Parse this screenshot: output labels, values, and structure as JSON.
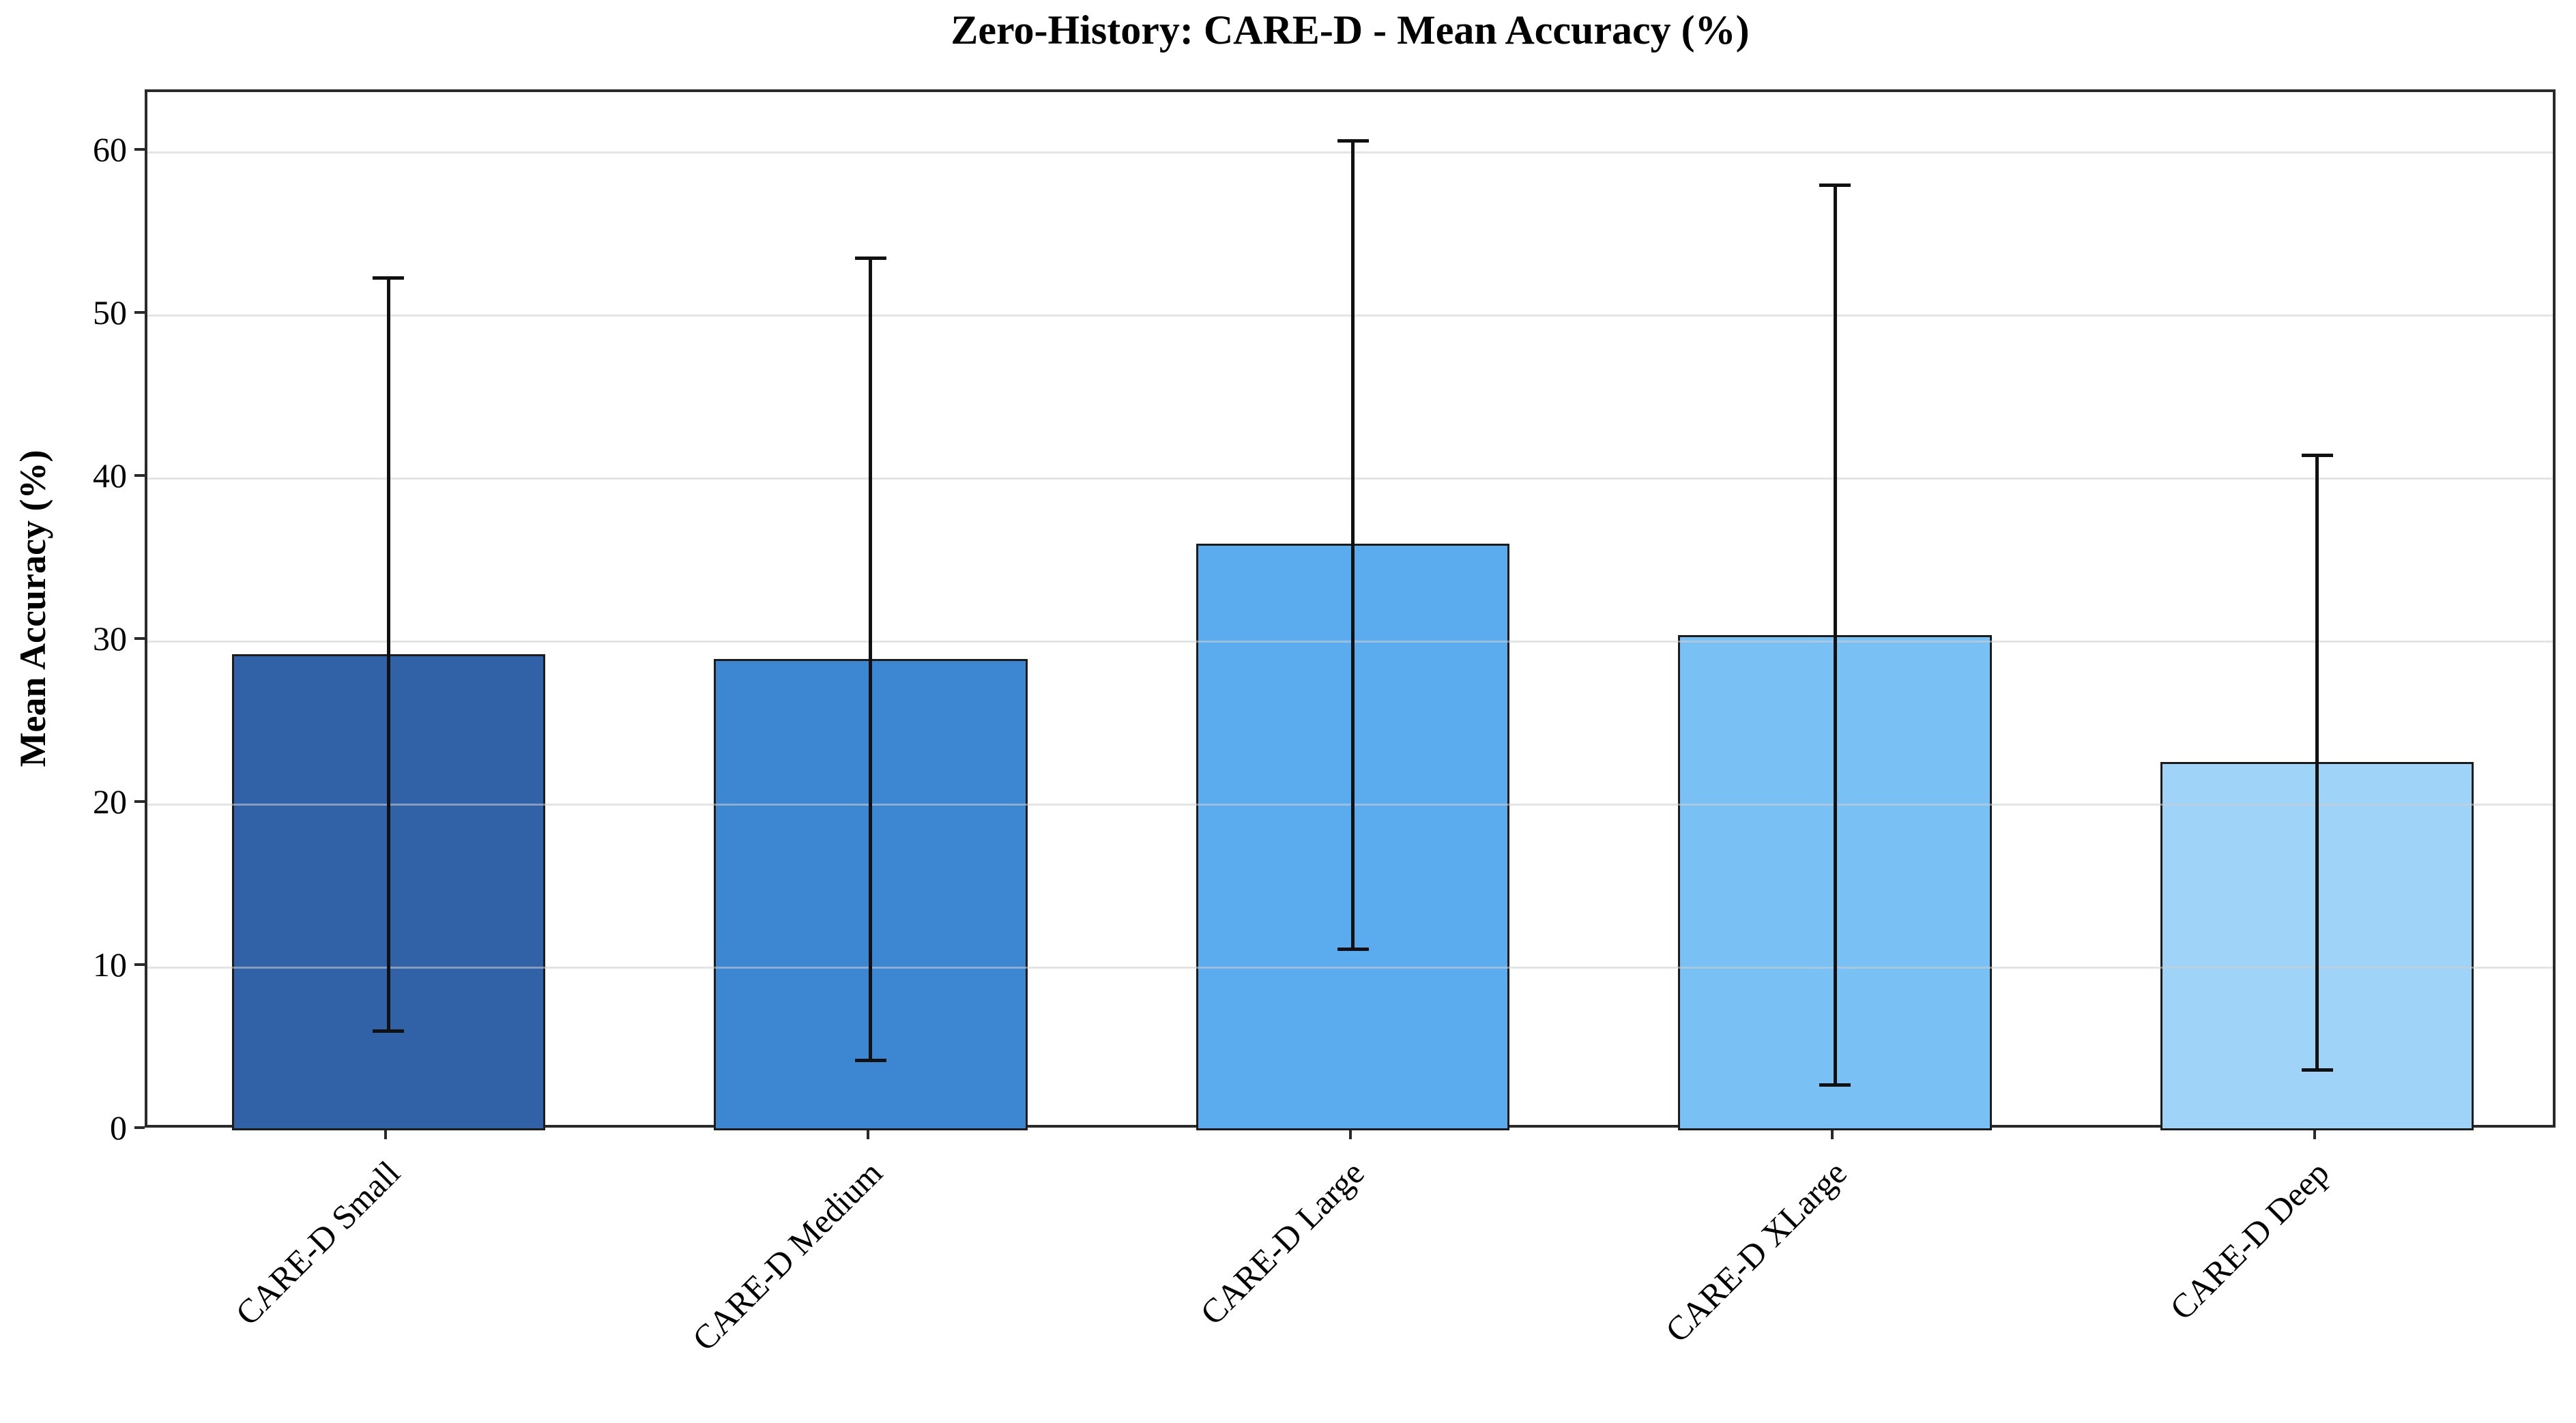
{
  "chart_data": {
    "type": "bar",
    "title": "Zero-History: CARE-D - Mean Accuracy (%)",
    "ylabel": "Mean Accuracy (%)",
    "xlabel": "",
    "categories": [
      "CARE-D Small",
      "CARE-D Medium",
      "CARE-D Large",
      "CARE-D XLarge",
      "CARE-D Deep"
    ],
    "values": [
      29.2,
      28.9,
      36.0,
      30.4,
      22.6
    ],
    "error_low": [
      6.1,
      4.3,
      11.1,
      2.8,
      3.7
    ],
    "error_high": [
      52.3,
      53.5,
      60.7,
      58.0,
      41.4
    ],
    "yticks": [
      0,
      10,
      20,
      30,
      40,
      50,
      60
    ],
    "ylim": [
      0,
      63.7
    ],
    "bar_colors": [
      "#3162a8",
      "#3c86d2",
      "#5bacef",
      "#79c0f5",
      "#a0d3f8"
    ],
    "bar_edge_color": "#1c1c1c",
    "error_color": "#111111",
    "grid": "horizontal-on-top",
    "legend": "none",
    "tick_label_rotation": 45,
    "bar_width_frac": 0.65
  }
}
